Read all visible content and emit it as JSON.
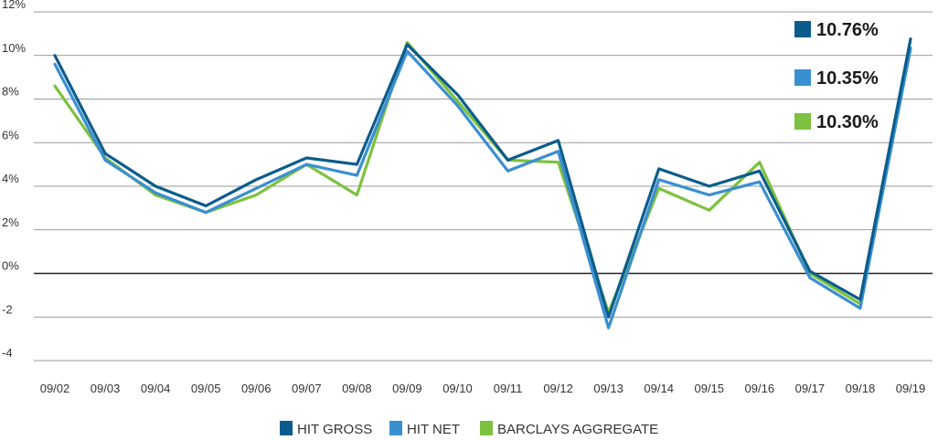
{
  "chart_data": {
    "type": "line",
    "title": "",
    "xlabel": "",
    "ylabel": "",
    "categories": [
      "09/02",
      "09/03",
      "09/04",
      "09/05",
      "09/06",
      "09/07",
      "09/08",
      "09/09",
      "09/10",
      "09/11",
      "09/12",
      "09/13",
      "09/14",
      "09/15",
      "09/16",
      "09/17",
      "09/18",
      "09/19"
    ],
    "ylim": [
      -4,
      12
    ],
    "yticks": [
      12,
      10,
      8,
      6,
      4,
      2,
      0,
      -2,
      -4
    ],
    "ytick_labels": [
      "12%",
      "10%",
      "8%",
      "6%",
      "4%",
      "2%",
      "0%",
      "-2",
      "-4"
    ],
    "grid": true,
    "legend_position": "bottom",
    "series": [
      {
        "name": "HIT GROSS",
        "color": "#0b5c8c",
        "values": [
          10.0,
          5.5,
          4.0,
          3.1,
          4.3,
          5.3,
          5.0,
          10.5,
          8.2,
          5.2,
          6.1,
          -2.0,
          4.8,
          4.0,
          4.7,
          0.1,
          -1.2,
          10.76
        ]
      },
      {
        "name": "HIT NET",
        "color": "#3a8fd0",
        "values": [
          9.6,
          5.2,
          3.7,
          2.8,
          3.9,
          5.0,
          4.5,
          10.2,
          7.7,
          4.7,
          5.6,
          -2.5,
          4.3,
          3.6,
          4.2,
          -0.2,
          -1.6,
          10.35
        ]
      },
      {
        "name": "BARCLAYS AGGREGATE",
        "color": "#7cc13f",
        "values": [
          8.6,
          5.3,
          3.6,
          2.8,
          3.6,
          5.0,
          3.6,
          10.6,
          7.9,
          5.2,
          5.1,
          -1.8,
          3.9,
          2.9,
          5.1,
          0.0,
          -1.4,
          10.3
        ]
      }
    ],
    "callouts": [
      "10.76%",
      "10.35%",
      "10.30%"
    ]
  }
}
